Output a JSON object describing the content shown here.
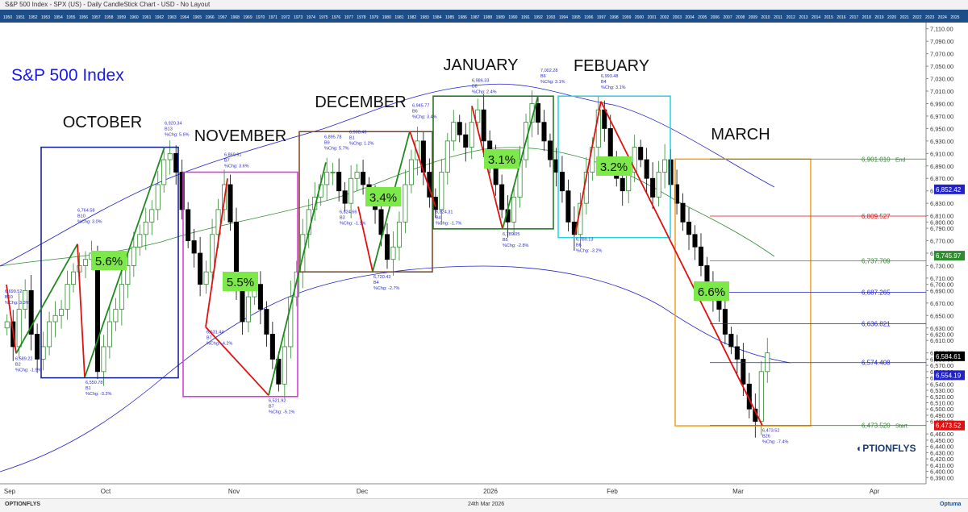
{
  "window_title": "S&P 500 Index - SPX (US) - Daily CandleStick Chart - USD - No Layout",
  "footer_date": "24th Mar 2026",
  "footer_left_brand": "OPTIONFLYS",
  "footer_right_brand": "Optuma",
  "timeline_years": [
    "1950",
    "1951",
    "1952",
    "1953",
    "1954",
    "1955",
    "1956",
    "1957",
    "1958",
    "1959",
    "1960",
    "1961",
    "1962",
    "1963",
    "1964",
    "1965",
    "1966",
    "1967",
    "1968",
    "1969",
    "1970",
    "1971",
    "1972",
    "1973",
    "1974",
    "1975",
    "1976",
    "1977",
    "1978",
    "1979",
    "1980",
    "1981",
    "1982",
    "1983",
    "1984",
    "1985",
    "1986",
    "1987",
    "1988",
    "1989",
    "1990",
    "1991",
    "1992",
    "1993",
    "1994",
    "1995",
    "1996",
    "1997",
    "1998",
    "1999",
    "2000",
    "2001",
    "2002",
    "2003",
    "2004",
    "2005",
    "2006",
    "2007",
    "2008",
    "2009",
    "2010",
    "2011",
    "2012",
    "2013",
    "2014",
    "2015",
    "2016",
    "2017",
    "2018",
    "2019",
    "2020",
    "2021",
    "2022",
    "2023",
    "2024",
    "2025"
  ],
  "colors": {
    "up": "#2e8b2e",
    "down": "#000000",
    "up_line": "#1e8a1e",
    "down_line": "#e01010",
    "ma_blue": "#2222cc",
    "ma_green": "#2e8b2e",
    "title": "#1a1ae6",
    "october": "#0a1a8a",
    "november": "#d633d6",
    "december": "#7a4020",
    "january": "#1a6e1a",
    "february": "#22d4e0",
    "march": "#f0a020",
    "pct_box": "#7de84a",
    "label_blue": "#2a2ac8"
  },
  "chart_data": {
    "type": "candlestick",
    "title": "S&P 500 Index",
    "y_range": [
      6380,
      7120
    ],
    "y_ticks": [
      6390,
      6400,
      6410,
      6420,
      6430,
      6440,
      6450,
      6460,
      6480,
      6490,
      6500,
      6510,
      6520,
      6530,
      6540,
      6550,
      6560,
      6570,
      6580,
      6590,
      6610,
      6620,
      6630,
      6650,
      6670,
      6690,
      6700,
      6710,
      6730,
      6750,
      6770,
      6790,
      6800,
      6810,
      6830,
      6850,
      6870,
      6890,
      6910,
      6930,
      6950,
      6970,
      6990,
      7010,
      7030,
      7050,
      7070,
      7090,
      7110
    ],
    "x_labels": [
      "Sep",
      "Oct",
      "Nov",
      "Dec",
      "2026",
      "Feb",
      "Mar",
      "Apr"
    ],
    "last_price_tags": [
      {
        "value": "6,852.42",
        "price": 6852.42,
        "color": "#2222cc"
      },
      {
        "value": "6,745.97",
        "price": 6745.97,
        "color": "#2e8b2e"
      },
      {
        "value": "6,584.61",
        "price": 6584.61,
        "color": "#000000"
      },
      {
        "value": "6,554.19",
        "price": 6554.19,
        "color": "#2222cc"
      },
      {
        "value": "6,473.52",
        "price": 6473.52,
        "color": "#e01010"
      }
    ],
    "fib_levels": [
      {
        "value": "6,901.010",
        "price": 6901.01,
        "note": "End",
        "color": "#2e8b2e"
      },
      {
        "value": "6,809.527",
        "price": 6809.527,
        "note": "",
        "color": "#e01010"
      },
      {
        "value": "6,737.709",
        "price": 6737.709,
        "note": "",
        "color": "#2e8b2e"
      },
      {
        "value": "6,687.265",
        "price": 6687.265,
        "note": "",
        "color": "#2222cc"
      },
      {
        "value": "6,636.821",
        "price": 6636.821,
        "note": "",
        "color": "#2222cc"
      },
      {
        "value": "6,574.408",
        "price": 6574.408,
        "note": "",
        "color": "#2222cc"
      },
      {
        "value": "6,473.520",
        "price": 6473.52,
        "note": "Start",
        "color": "#2e8b2e"
      }
    ],
    "months": [
      {
        "name": "OCTOBER",
        "pct": "5.6%",
        "color_key": "october"
      },
      {
        "name": "NOVEMBER",
        "pct": "5.5%",
        "color_key": "november"
      },
      {
        "name": "DECEMBER",
        "pct": "3.4%",
        "color_key": "december"
      },
      {
        "name": "JANUARY",
        "pct": "3.1%",
        "color_key": "january"
      },
      {
        "name": "FEBUARY",
        "pct": "3.2%",
        "color_key": "february"
      },
      {
        "name": "MARCH",
        "pct": "6.6%",
        "color_key": "march"
      }
    ],
    "pivots": [
      {
        "price": 6699.52,
        "lines": [
          "6,699.52",
          "B10",
          "%Chg: 3.3%"
        ]
      },
      {
        "price": 6589.22,
        "lines": [
          "6,589.22",
          "B2",
          "%Chg: -1.9%"
        ]
      },
      {
        "price": 6764.58,
        "lines": [
          "6,764.58",
          "B10",
          "%Chg: 3.0%"
        ]
      },
      {
        "price": 6550.78,
        "lines": [
          "6,550.78",
          "B1",
          "%Chg: -3.2%"
        ]
      },
      {
        "price": 6920.34,
        "lines": [
          "6,920.34",
          "B13",
          "%Chg: 5.6%"
        ]
      },
      {
        "price": 6869.91,
        "lines": [
          "6,869.91",
          "B7",
          "%Chg: 3.6%"
        ]
      },
      {
        "price": 6631.44,
        "lines": [
          "6,631.44",
          "B7",
          "%Chg: -4.2%"
        ]
      },
      {
        "price": 6521.92,
        "lines": [
          "6,521.92",
          "B7",
          "%Chg: -5.1%"
        ]
      },
      {
        "price": 6895.78,
        "lines": [
          "6,895.78",
          "B9",
          "%Chg: 5.7%"
        ]
      },
      {
        "price": 6903.46,
        "lines": [
          "6,903.46",
          "B1",
          "%Chg: 1.2%"
        ]
      },
      {
        "price": 6824.66,
        "lines": [
          "6,824.66",
          "B3",
          "%Chg: -1.1%"
        ]
      },
      {
        "price": 6720.43,
        "lines": [
          "6,720.43",
          "B4",
          "%Chg: -2.7%"
        ]
      },
      {
        "price": 6945.77,
        "lines": [
          "6,945.77",
          "B6",
          "%Chg: 3.4%"
        ]
      },
      {
        "price": 6824.31,
        "lines": [
          "6,824.31",
          "B4",
          "%Chg: -1.7%"
        ]
      },
      {
        "price": 6986.33,
        "lines": [
          "6,986.33",
          "B8",
          "%Chg: 2.4%"
        ]
      },
      {
        "price": 6789.05,
        "lines": [
          "6,789.05",
          "B5",
          "%Chg: -2.8%"
        ]
      },
      {
        "price": 7002.28,
        "lines": [
          "7,002.28",
          "B6",
          "%Chg: 3.1%"
        ]
      },
      {
        "price": 6993.48,
        "lines": [
          "6,993.48",
          "B4",
          "%Chg: 3.1%"
        ]
      },
      {
        "price": 6780.13,
        "lines": [
          "6,780.13",
          "B6",
          "%Chg: -3.2%"
        ]
      },
      {
        "price": 6473.52,
        "lines": [
          "6,473.52",
          "B26",
          "%Chg: -7.4%"
        ]
      }
    ],
    "series_closes": [
      6640,
      6600,
      6660,
      6690,
      6620,
      6580,
      6600,
      6640,
      6650,
      6660,
      6700,
      6720,
      6730,
      6740,
      6750,
      6560,
      6600,
      6640,
      6660,
      6700,
      6730,
      6760,
      6780,
      6800,
      6820,
      6860,
      6900,
      6910,
      6880,
      6820,
      6770,
      6750,
      6700,
      6720,
      6780,
      6820,
      6860,
      6800,
      6700,
      6640,
      6680,
      6700,
      6660,
      6620,
      6580,
      6540,
      6600,
      6680,
      6720,
      6780,
      6820,
      6840,
      6860,
      6880,
      6880,
      6850,
      6830,
      6870,
      6880,
      6860,
      6840,
      6820,
      6780,
      6740,
      6760,
      6800,
      6860,
      6900,
      6930,
      6880,
      6840,
      6820,
      6880,
      6930,
      6960,
      6940,
      6920,
      6960,
      6980,
      6930,
      6900,
      6860,
      6820,
      6800,
      6840,
      6900,
      6960,
      6990,
      6960,
      6930,
      6900,
      6880,
      6850,
      6800,
      6780,
      6830,
      6880,
      6920,
      6980,
      6950,
      6900,
      6870,
      6850,
      6880,
      6920,
      6900,
      6870,
      6840,
      6880,
      6900,
      6860,
      6830,
      6800,
      6780,
      6760,
      6730,
      6700,
      6680,
      6660,
      6620,
      6600,
      6580,
      6540,
      6500,
      6480,
      6560,
      6590
    ]
  }
}
